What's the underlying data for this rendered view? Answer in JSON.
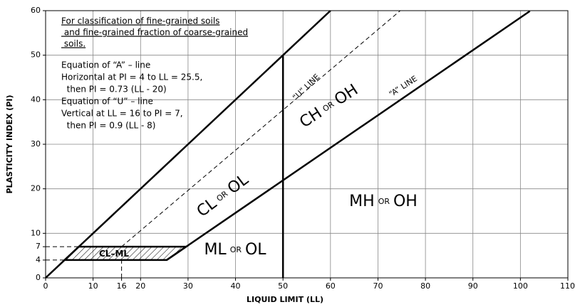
{
  "chart_data": {
    "type": "line",
    "xlabel": "LIQUID LIMIT (LL)",
    "ylabel": "PLASTICITY INDEX (PI)",
    "xlim": [
      0,
      110
    ],
    "ylim": [
      0,
      60
    ],
    "xticks": [
      0,
      10,
      16,
      20,
      30,
      40,
      50,
      60,
      70,
      80,
      90,
      100,
      110
    ],
    "yticks": [
      0,
      4,
      7,
      10,
      20,
      30,
      40,
      50,
      60
    ],
    "grid": true,
    "color": "#000000",
    "lines": [
      {
        "x": [
          0,
          60
        ],
        "y": [
          0,
          60
        ],
        "style": "solid"
      },
      {
        "x": [
          25.5,
          102
        ],
        "y": [
          4,
          59.9
        ],
        "style": "solid"
      },
      {
        "x": [
          50,
          50
        ],
        "y": [
          0,
          50
        ],
        "style": "solid"
      },
      {
        "x": [
          16,
          74.7
        ],
        "y": [
          7,
          60
        ],
        "style": "dashed"
      },
      {
        "x": [
          0,
          7
        ],
        "y": [
          7,
          7
        ],
        "style": "dashed"
      },
      {
        "x": [
          0,
          4
        ],
        "y": [
          4,
          4
        ],
        "style": "dashed"
      },
      {
        "x": [
          16,
          16
        ],
        "y": [
          0,
          4
        ],
        "style": "dashed"
      }
    ],
    "hatch": {
      "x": [
        4,
        25.5,
        29.6,
        7
      ],
      "y": [
        4,
        4,
        7,
        7
      ]
    },
    "note": [
      "For classification of fine-grained soils",
      " and fine-grained fraction of coarse-grained",
      " soils."
    ],
    "equations": [
      "Equation of “A” – line",
      "Horizontal at PI = 4 to LL = 25.5,",
      "  then PI = 0.73 (LL - 20)",
      "Equation of “U” – line",
      "Vertical at LL = 16 to PI = 7,",
      "  then PI = 0.9 (LL - 8)"
    ],
    "line_labels": [
      "“U” LINE",
      "“A” LINE"
    ],
    "regions": [
      [
        "CL–ML"
      ],
      [
        "ML",
        "OR",
        "OL"
      ],
      [
        "CL",
        "OR",
        "OL"
      ],
      [
        "CH",
        "OR",
        "OH"
      ],
      [
        "MH",
        "OR",
        "OH"
      ]
    ]
  }
}
